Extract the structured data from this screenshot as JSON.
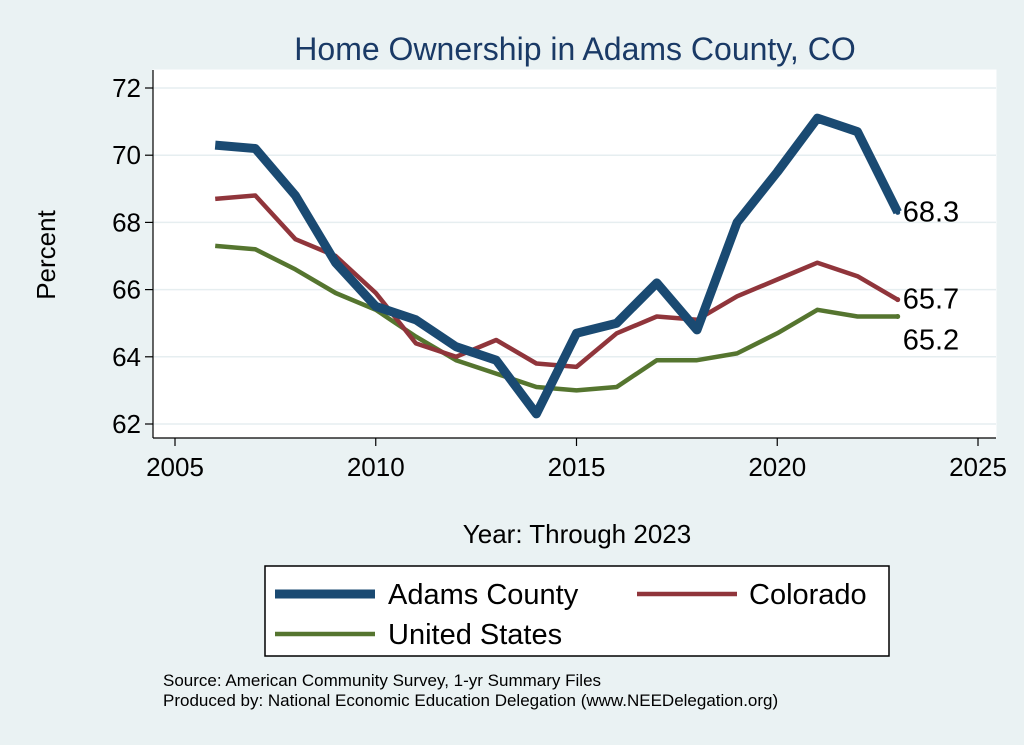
{
  "chart_data": {
    "type": "line",
    "title": "Home Ownership in Adams County, CO",
    "xlabel": "Year: Through 2023",
    "ylabel": "Percent",
    "xlim": [
      2005,
      2025
    ],
    "ylim": [
      62,
      72
    ],
    "xticks": [
      "2005",
      "2010",
      "2015",
      "2020",
      "2025"
    ],
    "yticks": [
      "62",
      "64",
      "66",
      "68",
      "70",
      "72"
    ],
    "grid": "horizontal",
    "x": [
      2006,
      2007,
      2008,
      2009,
      2010,
      2011,
      2012,
      2013,
      2014,
      2015,
      2016,
      2017,
      2018,
      2019,
      2020,
      2021,
      2022,
      2023
    ],
    "series": [
      {
        "name": "Adams County",
        "color": "#1A4A72",
        "values": [
          70.3,
          70.2,
          68.8,
          66.8,
          65.5,
          65.1,
          64.3,
          63.9,
          62.3,
          64.7,
          65.0,
          66.2,
          64.8,
          68.0,
          69.5,
          71.1,
          70.7,
          68.3
        ],
        "end_label": "68.3"
      },
      {
        "name": "Colorado",
        "color": "#90353B",
        "values": [
          68.7,
          68.8,
          67.5,
          67.0,
          65.9,
          64.4,
          64.0,
          64.5,
          63.8,
          63.7,
          64.7,
          65.2,
          65.1,
          65.8,
          66.3,
          66.8,
          66.4,
          65.7
        ],
        "end_label": "65.7"
      },
      {
        "name": "United States",
        "color": "#55752F",
        "values": [
          67.3,
          67.2,
          66.6,
          65.9,
          65.4,
          64.6,
          63.9,
          63.5,
          63.1,
          63.0,
          63.1,
          63.9,
          63.9,
          64.1,
          64.7,
          65.4,
          65.2,
          65.2
        ],
        "end_label": "65.2"
      }
    ],
    "legend": {
      "position": "bottom",
      "entries": [
        "Adams County",
        "Colorado",
        "United States"
      ]
    }
  },
  "footer": {
    "source": "Source: American Community Survey, 1-yr Summary Files",
    "produced_by": "Produced by: National Economic Education Delegation (www.NEEDelegation.org)"
  }
}
